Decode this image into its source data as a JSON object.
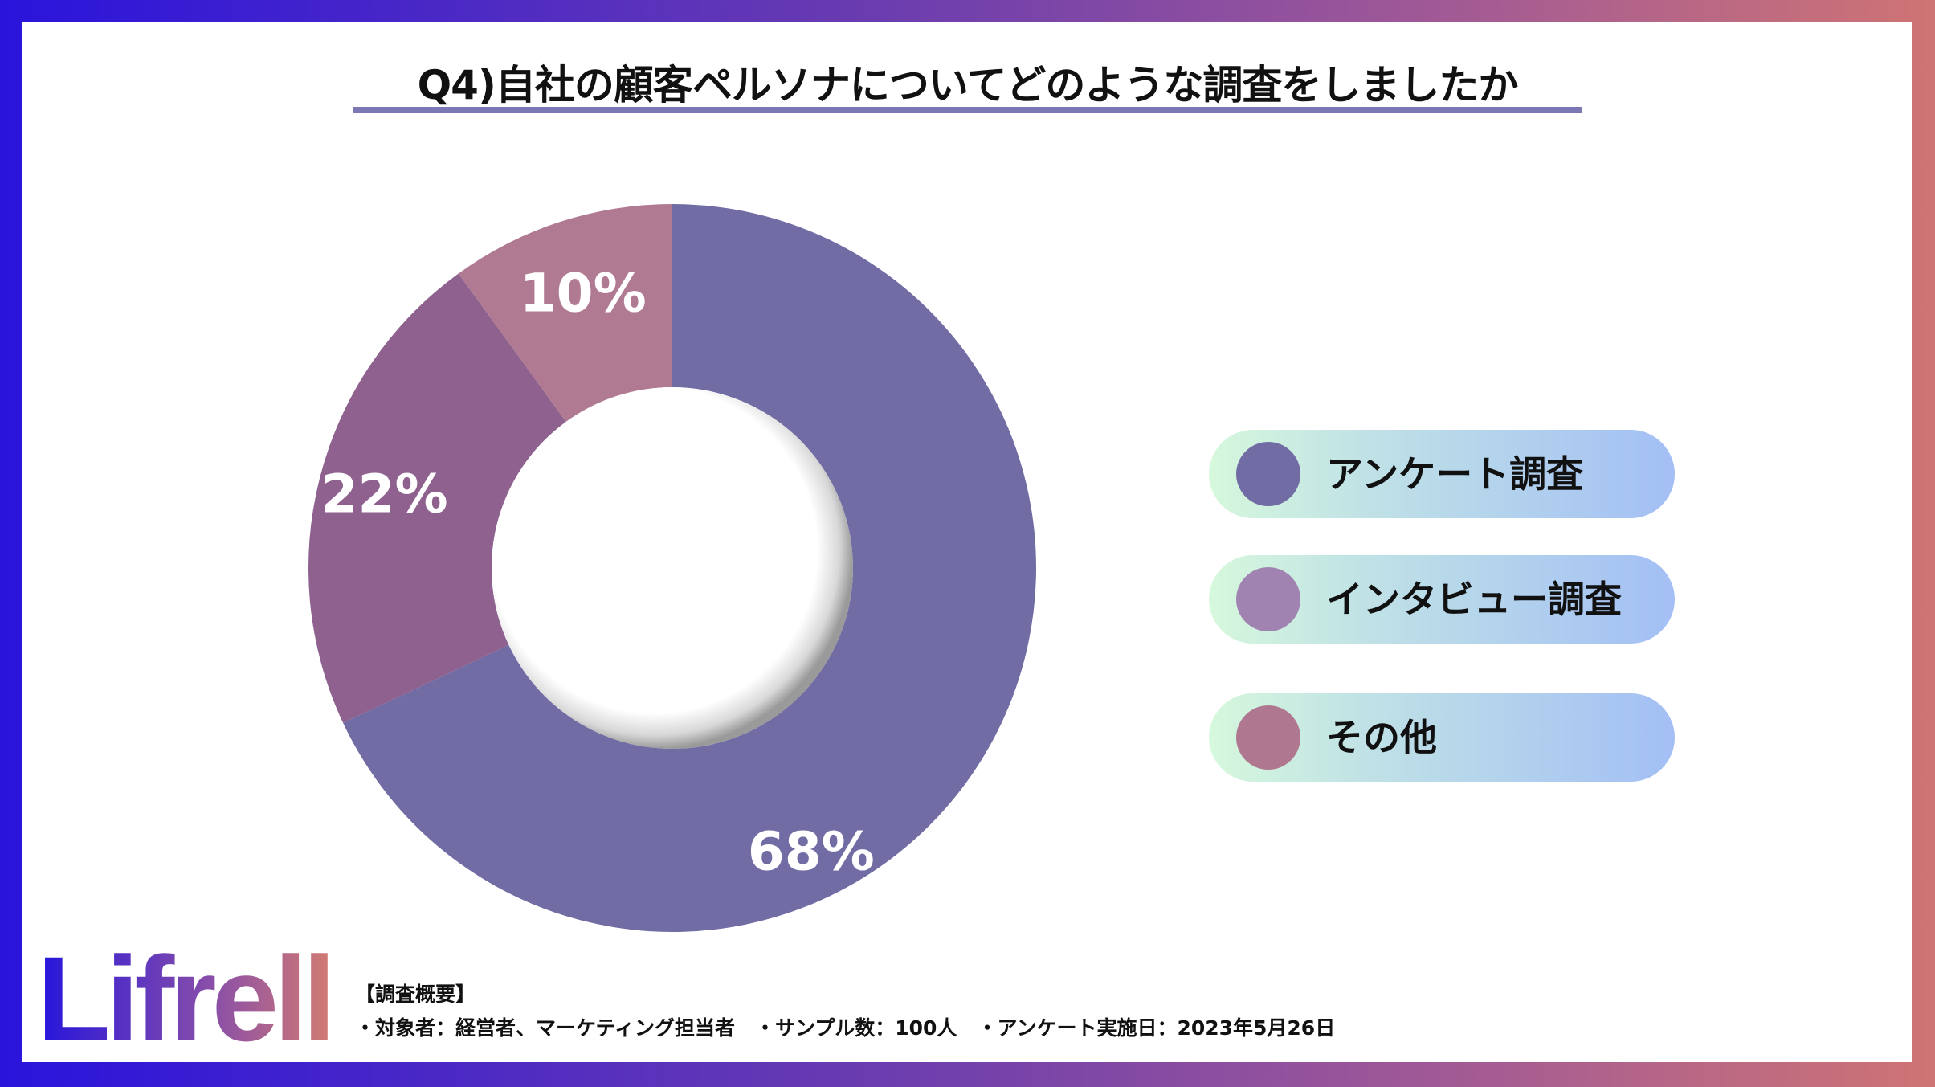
{
  "title": "Q4)自社の顧客ペルソナについてどのような調査をしましたか",
  "chart_data": {
    "type": "pie",
    "donut": true,
    "title": "Q4)自社の顧客ペルソナについてどのような調査をしましたか",
    "categories": [
      "アンケート調査",
      "インタビュー調査",
      "その他"
    ],
    "values": [
      68,
      22,
      10
    ],
    "labels": [
      "68%",
      "22%",
      "10%"
    ],
    "colors": [
      "#716ca4",
      "#8e618f",
      "#b07a92"
    ],
    "legend_colors": [
      "#716ca4",
      "#a083b0",
      "#b07890"
    ],
    "start": "top",
    "direction": "clockwise",
    "legend_placement": "right"
  },
  "logo": "Lifrell",
  "notes": {
    "heading": "【調査概要】",
    "line": "・対象者：経営者、マーケティング担当者　・サンプル数：100人　・アンケート実施日：2023年5月26日"
  }
}
